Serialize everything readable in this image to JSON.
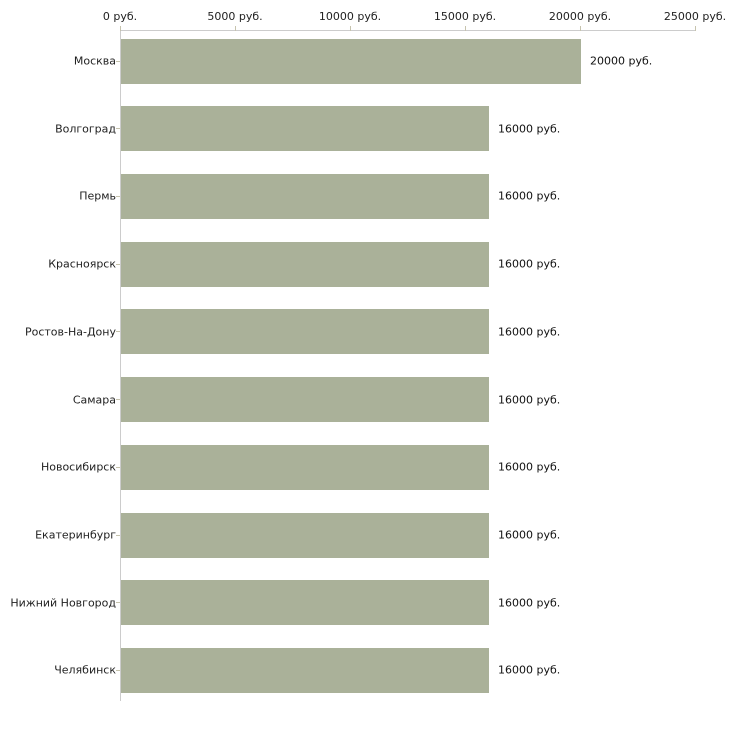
{
  "page": {
    "background_color": "#ffffff"
  },
  "chart_data": {
    "type": "bar",
    "orientation": "horizontal",
    "title": "",
    "xlabel": "",
    "ylabel": "",
    "categories": [
      "Москва",
      "Волгоград",
      "Пермь",
      "Красноярск",
      "Ростов-На-Дону",
      "Самара",
      "Новосибирск",
      "Екатеринбург",
      "Нижний Новгород",
      "Челябинск"
    ],
    "values": [
      20000,
      16000,
      16000,
      16000,
      16000,
      16000,
      16000,
      16000,
      16000,
      16000
    ],
    "value_labels": [
      "20000 руб.",
      "16000 руб.",
      "16000 руб.",
      "16000 руб.",
      "16000 руб.",
      "16000 руб.",
      "16000 руб.",
      "16000 руб.",
      "16000 руб.",
      "16000 руб."
    ],
    "unit": "руб.",
    "xlim": [
      0,
      25000
    ],
    "x_ticks": [
      {
        "value": 0,
        "label": "0 руб."
      },
      {
        "value": 5000,
        "label": "5000 руб."
      },
      {
        "value": 10000,
        "label": "10000 руб."
      },
      {
        "value": 15000,
        "label": "15000 руб."
      },
      {
        "value": 20000,
        "label": "20000 руб."
      },
      {
        "value": 25000,
        "label": "25000 руб."
      }
    ],
    "axis_position": "top",
    "grid": false,
    "legend": false,
    "bar_color": "#aab199",
    "axis_color": "#cccccc",
    "tick_color": "#c6c3ad",
    "text_color": "#222222"
  }
}
